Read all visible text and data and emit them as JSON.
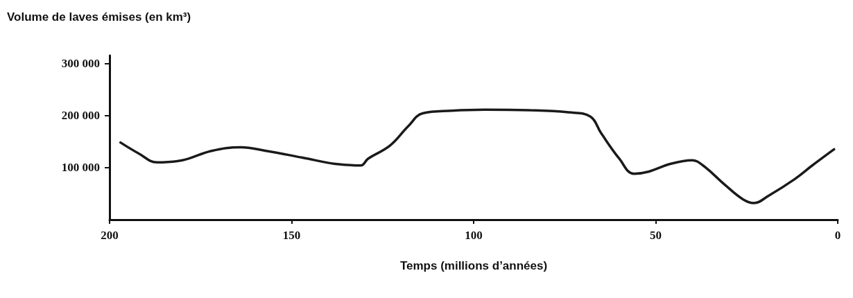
{
  "chart_data": {
    "type": "line",
    "ylabel": "Volume de laves émises (en km³)",
    "xlabel": "Temps (millions d’années)",
    "xlim": [
      200,
      0
    ],
    "xticks": [
      200,
      150,
      100,
      50,
      0
    ],
    "ylim": [
      0,
      315000
    ],
    "yticks": [
      {
        "value": 100000,
        "label": "100 000"
      },
      {
        "value": 200000,
        "label": "200 000"
      },
      {
        "value": 300000,
        "label": "300 000"
      }
    ],
    "grid": false,
    "marker": "none",
    "line_style": "solid",
    "series": [
      {
        "color": "#1a1a1a",
        "x": [
          197,
          192,
          187,
          180,
          172,
          164,
          157,
          147,
          138,
          131,
          129,
          123,
          118,
          114,
          106,
          97,
          85,
          74,
          68,
          65,
          60,
          56,
          52,
          46,
          40,
          37,
          31,
          26,
          23,
          19,
          12,
          7,
          1
        ],
        "values": [
          148000,
          127000,
          110000,
          114000,
          132000,
          139000,
          132000,
          119000,
          107000,
          104000,
          117000,
          142000,
          179000,
          204000,
          209000,
          211000,
          210000,
          206000,
          198000,
          166000,
          117000,
          88000,
          92000,
          107000,
          114000,
          104000,
          67000,
          39000,
          32000,
          46000,
          77000,
          104000,
          135000
        ]
      }
    ]
  }
}
